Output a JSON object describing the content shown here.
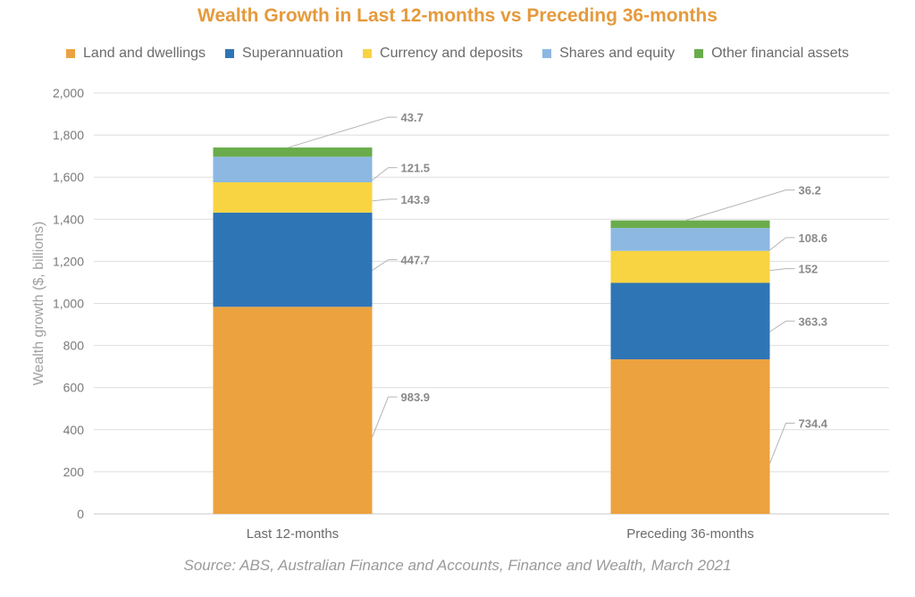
{
  "chart_data": {
    "type": "bar",
    "stacked": true,
    "title": "Wealth Growth in Last 12-months vs Preceding 36-months",
    "ylabel": "Wealth growth ($, billions)",
    "xlabel": "",
    "ylim": [
      0,
      2000
    ],
    "y_ticks": [
      "0",
      "200",
      "400",
      "600",
      "800",
      "1,000",
      "1,200",
      "1,400",
      "1,600",
      "1,800",
      "2,000"
    ],
    "grid": true,
    "legend_position": "top",
    "categories": [
      "Last 12-months",
      "Preceding 36-months"
    ],
    "series": [
      {
        "name": "Land and dwellings",
        "color": "#eca23f",
        "values": [
          983.9,
          734.4
        ],
        "labels": [
          "983.9",
          "734.4"
        ]
      },
      {
        "name": "Superannuation",
        "color": "#2e75b6",
        "values": [
          447.7,
          363.3
        ],
        "labels": [
          "447.7",
          "363.3"
        ]
      },
      {
        "name": "Currency and deposits",
        "color": "#f8d443",
        "values": [
          143.9,
          152
        ],
        "labels": [
          "143.9",
          "152"
        ]
      },
      {
        "name": "Shares and equity",
        "color": "#8cb8e2",
        "values": [
          121.5,
          108.6
        ],
        "labels": [
          "121.5",
          "108.6"
        ]
      },
      {
        "name": "Other financial assets",
        "color": "#6aac4b",
        "values": [
          43.7,
          36.2
        ],
        "labels": [
          "43.7",
          "36.2"
        ]
      }
    ]
  },
  "source": "Source: ABS, Australian Finance and Accounts, Finance and Wealth, March 2021"
}
